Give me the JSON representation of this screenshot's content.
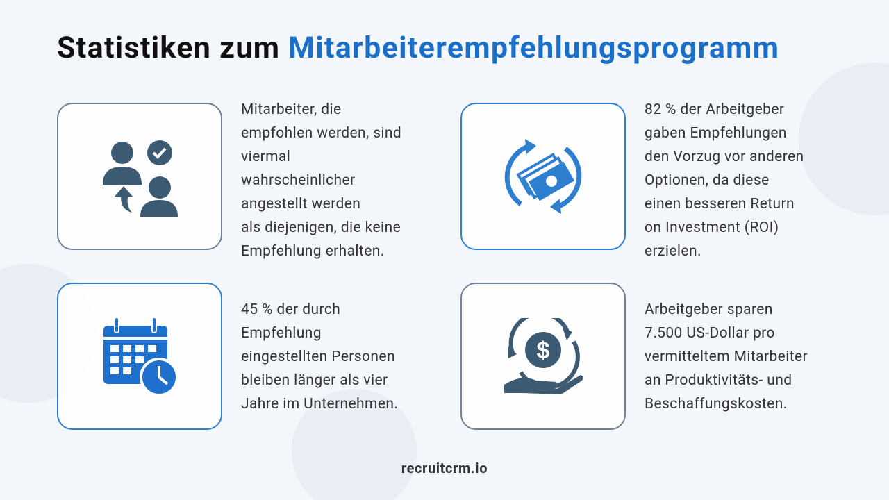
{
  "header": {
    "title_plain": "Statistiken zum",
    "title_highlight": "Mitarbeiterempfehlungsprogramm"
  },
  "cards": [
    {
      "lines": [
        "Mitarbeiter, die",
        "empfohlen werden, sind",
        "viermal",
        "wahrscheinlicher",
        "angestellt werden",
        "als diejenigen, die keine",
        "Empfehlung erhalten."
      ]
    },
    {
      "lines": [
        "82 % der Arbeitgeber",
        "gaben Empfehlungen",
        "den Vorzug vor anderen",
        "Optionen, da diese",
        "einen besseren Return",
        "on Investment (ROI)",
        "erzielen."
      ]
    },
    {
      "lines": [
        "45 % der durch",
        "Empfehlung",
        "eingestellten Personen",
        "bleiben länger als vier",
        "Jahre im Unternehmen."
      ]
    },
    {
      "lines": [
        "Arbeitgeber sparen",
        "7.500 US-Dollar pro",
        "vermitteltem Mitarbeiter",
        "an Produktivitäts- und",
        "Beschaffungskosten."
      ]
    }
  ],
  "footer": "recruitcrm.io"
}
